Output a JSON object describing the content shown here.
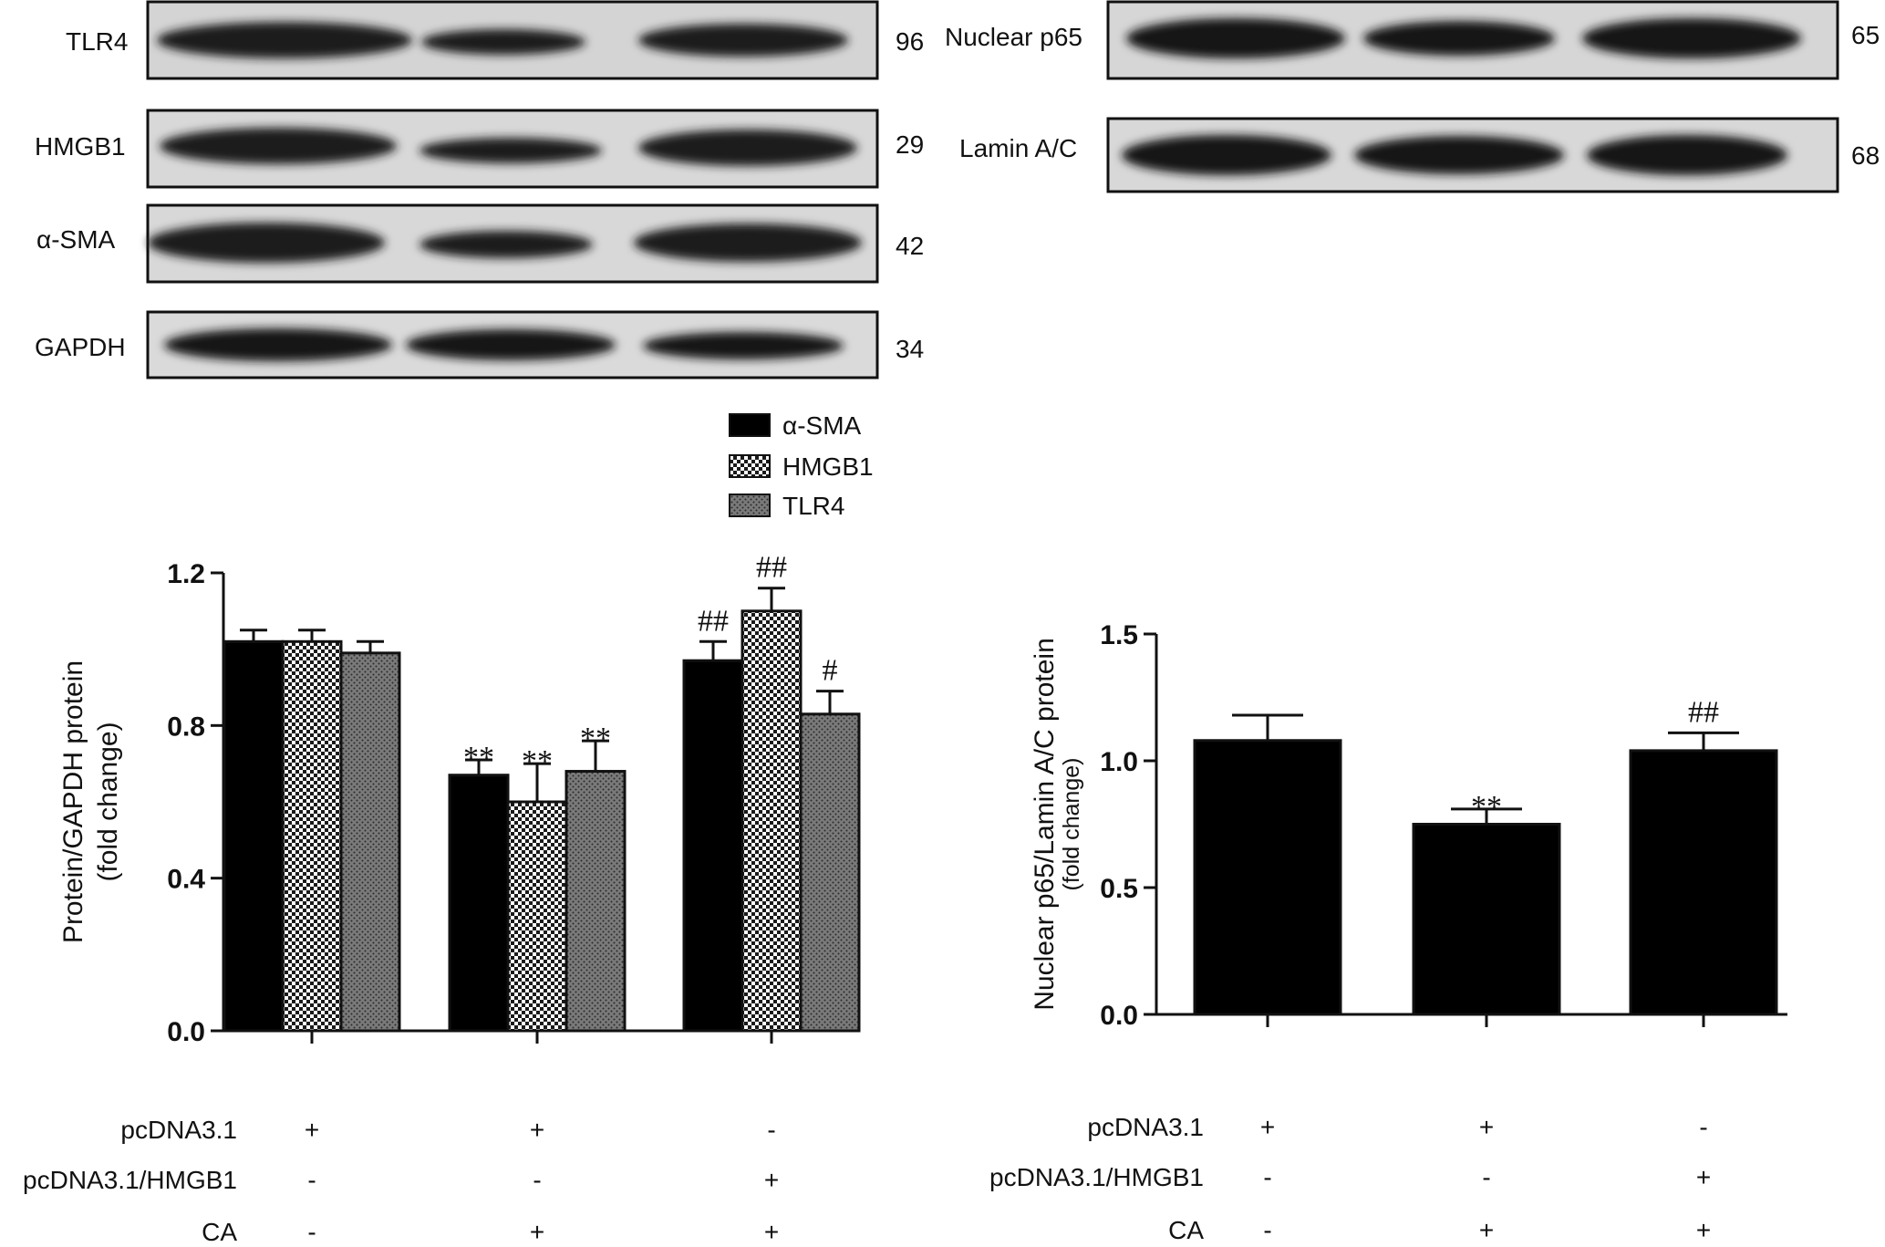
{
  "blots_left": {
    "rows": [
      {
        "label": "TLR4",
        "kda": "96"
      },
      {
        "label": "HMGB1",
        "kda": "29"
      },
      {
        "label": "α-SMA",
        "kda": "42"
      },
      {
        "label": "GAPDH",
        "kda": "34"
      }
    ]
  },
  "blots_right": {
    "rows": [
      {
        "label": "Nuclear p65",
        "kda": "65"
      },
      {
        "label": "Lamin A/C",
        "kda": "68"
      }
    ]
  },
  "chart_data": [
    {
      "type": "bar",
      "categories": [
        "1",
        "2",
        "3"
      ],
      "series": [
        {
          "name": "α-SMA",
          "values": [
            1.02,
            0.67,
            0.97
          ],
          "errors": [
            0.03,
            0.04,
            0.05
          ],
          "annotations": [
            "",
            "**",
            "##"
          ],
          "pattern": "solid",
          "color": "#000000"
        },
        {
          "name": "HMGB1",
          "values": [
            1.02,
            0.6,
            1.1
          ],
          "errors": [
            0.03,
            0.1,
            0.06
          ],
          "annotations": [
            "",
            "**",
            "##"
          ],
          "pattern": "checker",
          "color": "#ffffff"
        },
        {
          "name": "TLR4",
          "values": [
            0.99,
            0.68,
            0.83
          ],
          "errors": [
            0.03,
            0.08,
            0.06
          ],
          "annotations": [
            "",
            "**",
            "#"
          ],
          "pattern": "dotted",
          "color": "#666666"
        }
      ],
      "ylabel": "Protein/GAPDH protein",
      "ylabel_sub": "(fold change)",
      "ylim": [
        0,
        1.2
      ],
      "yticks": [
        "0.0",
        "0.4",
        "0.8",
        "1.2"
      ],
      "legend": "top",
      "treatments": [
        {
          "label": "pcDNA3.1",
          "values": [
            "+",
            "+",
            "-"
          ]
        },
        {
          "label": "pcDNA3.1/HMGB1",
          "values": [
            "-",
            "-",
            "+"
          ]
        },
        {
          "label": "CA",
          "values": [
            "-",
            "+",
            "+"
          ]
        }
      ]
    },
    {
      "type": "bar",
      "categories": [
        "1",
        "2",
        "3"
      ],
      "series": [
        {
          "values": [
            1.08,
            0.75,
            1.04
          ],
          "errors": [
            0.1,
            0.06,
            0.07
          ],
          "annotations": [
            "",
            "**",
            "##"
          ],
          "color": "#000000"
        }
      ],
      "ylabel": "Nuclear p65/Lamin A/C protein",
      "ylabel_sub": "(fold change)",
      "ylim": [
        0,
        1.5
      ],
      "yticks": [
        "0.0",
        "0.5",
        "1.0",
        "1.5"
      ],
      "treatments": [
        {
          "label": "pcDNA3.1",
          "values": [
            "+",
            "+",
            "-"
          ]
        },
        {
          "label": "pcDNA3.1/HMGB1",
          "values": [
            "-",
            "-",
            "+"
          ]
        },
        {
          "label": "CA",
          "values": [
            "-",
            "+",
            "+"
          ]
        }
      ]
    }
  ]
}
